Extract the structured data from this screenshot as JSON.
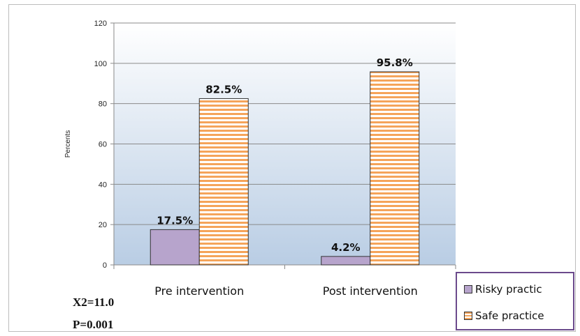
{
  "chart_data": {
    "type": "bar",
    "categories": [
      "Pre intervention",
      "Post intervention"
    ],
    "series": [
      {
        "name": "Risky practic",
        "values": [
          17.5,
          4.2
        ],
        "labels": [
          "17.5%",
          "4.2%"
        ],
        "color": "#b7a4cc"
      },
      {
        "name": "Safe practice",
        "values": [
          82.5,
          95.8
        ],
        "labels": [
          "82.5%",
          "95.8%"
        ],
        "color": "#f5a45a",
        "pattern": "horizontal-stripes"
      }
    ],
    "ylabel": "Percents",
    "ylim": [
      0,
      120
    ],
    "yticks": [
      0,
      20,
      40,
      60,
      80,
      100,
      120
    ],
    "grid": true,
    "legend": "bottom-right"
  },
  "stats": {
    "chi_square": "X2=11.0",
    "p_value": "P=0.001"
  }
}
